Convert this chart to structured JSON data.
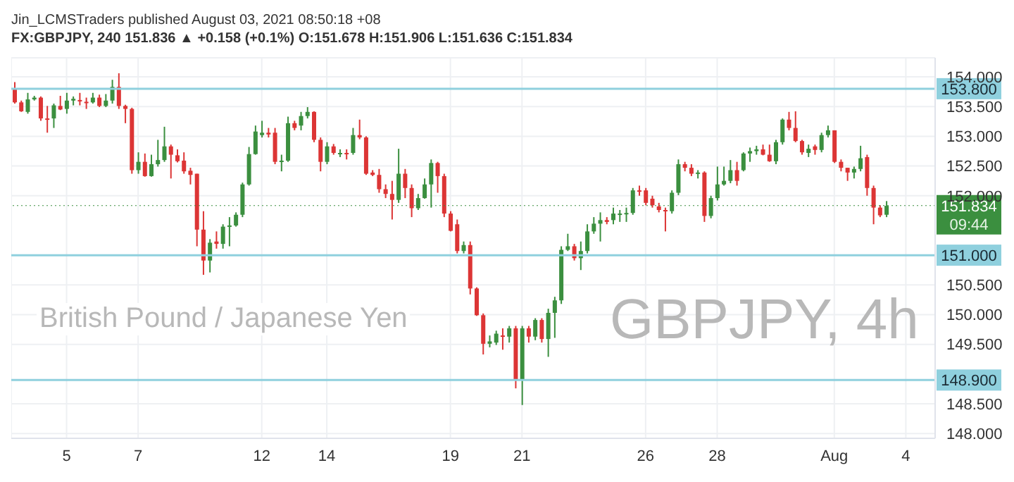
{
  "chart_data": {
    "type": "candlestick",
    "title": "Jin_LCMSTraders published August 03, 2021 08:50:18 +08",
    "subtitle": "FX:GBPJPY, 240 151.836 ▲ +0.158 (+0.1%) O:151.678 H:151.906 L:151.636 C:151.834",
    "annotations": [
      "GBPJPY, 4h",
      "British Pound / Japanese Yen",
      "09:44"
    ],
    "categories": [
      null,
      null,
      null,
      null,
      null,
      null,
      null,
      null,
      "5",
      null,
      null,
      null,
      null,
      null,
      null,
      null,
      null,
      null,
      null,
      "7",
      null,
      null,
      null,
      null,
      null,
      null,
      null,
      null,
      null,
      null,
      null,
      null,
      null,
      null,
      null,
      null,
      null,
      null,
      "12",
      null,
      null,
      null,
      null,
      null,
      null,
      null,
      null,
      null,
      "14",
      null,
      null,
      null,
      null,
      null,
      null,
      null,
      null,
      null,
      null,
      null,
      null,
      null,
      null,
      null,
      null,
      null,
      null,
      "19",
      null,
      null,
      null,
      null,
      null,
      null,
      null,
      null,
      null,
      null,
      "21",
      null,
      null,
      null,
      null,
      null,
      null,
      null,
      null,
      null,
      null,
      null,
      null,
      null,
      null,
      null,
      null,
      null,
      null,
      "26",
      null,
      null,
      null,
      null,
      null,
      null,
      null,
      null,
      null,
      null,
      "28",
      null,
      null,
      null,
      null,
      null,
      null,
      null,
      null,
      null,
      null,
      null,
      null,
      null,
      null,
      null,
      null,
      null,
      "Aug",
      null,
      null,
      null,
      null,
      null,
      null,
      null,
      null,
      null,
      null,
      "4",
      null,
      null,
      null,
      null
    ],
    "ohlc": [
      [
        153.81,
        153.91,
        153.55,
        153.57
      ],
      [
        153.57,
        153.6,
        153.41,
        153.42
      ],
      [
        153.41,
        153.73,
        153.38,
        153.62
      ],
      [
        153.62,
        153.68,
        153.6,
        153.65
      ],
      [
        153.65,
        153.67,
        153.26,
        153.3
      ],
      [
        153.3,
        153.51,
        153.06,
        153.29
      ],
      [
        153.3,
        153.55,
        153.14,
        153.52
      ],
      [
        153.51,
        153.68,
        153.44,
        153.45
      ],
      [
        153.46,
        153.73,
        153.38,
        153.6
      ],
      [
        153.6,
        153.67,
        153.52,
        153.63
      ],
      [
        153.61,
        153.73,
        153.52,
        153.59
      ],
      [
        153.58,
        153.65,
        153.46,
        153.57
      ],
      [
        153.57,
        153.73,
        153.55,
        153.65
      ],
      [
        153.65,
        153.7,
        153.49,
        153.51
      ],
      [
        153.51,
        153.71,
        153.49,
        153.6
      ],
      [
        153.6,
        153.95,
        153.55,
        153.83
      ],
      [
        153.83,
        154.06,
        153.46,
        153.51
      ],
      [
        153.51,
        153.53,
        153.22,
        153.46
      ],
      [
        153.46,
        153.48,
        152.37,
        152.43
      ],
      [
        152.43,
        152.73,
        152.37,
        152.57
      ],
      [
        152.57,
        152.71,
        152.32,
        152.33
      ],
      [
        152.33,
        152.69,
        152.32,
        152.53
      ],
      [
        152.53,
        152.94,
        152.49,
        152.6
      ],
      [
        152.6,
        153.16,
        152.57,
        152.83
      ],
      [
        152.83,
        152.86,
        152.29,
        152.69
      ],
      [
        152.68,
        152.78,
        152.56,
        152.58
      ],
      [
        152.59,
        152.73,
        152.37,
        152.41
      ],
      [
        152.42,
        152.47,
        152.19,
        152.35
      ],
      [
        152.37,
        152.37,
        151.15,
        151.43
      ],
      [
        151.43,
        151.74,
        150.67,
        150.91
      ],
      [
        150.91,
        151.27,
        150.71,
        151.21
      ],
      [
        151.23,
        151.4,
        151.11,
        151.19
      ],
      [
        151.19,
        151.52,
        151.11,
        151.48
      ],
      [
        151.49,
        151.64,
        151.15,
        151.5
      ],
      [
        151.5,
        151.72,
        151.48,
        151.68
      ],
      [
        151.68,
        152.22,
        151.64,
        152.19
      ],
      [
        152.19,
        152.82,
        152.17,
        152.7
      ],
      [
        152.7,
        153.18,
        152.69,
        153.08
      ],
      [
        153.02,
        153.26,
        152.98,
        153.06
      ],
      [
        153.06,
        153.14,
        152.98,
        153.03
      ],
      [
        153.06,
        153.14,
        152.53,
        152.57
      ],
      [
        152.57,
        152.69,
        152.41,
        152.59
      ],
      [
        152.59,
        153.33,
        152.57,
        153.22
      ],
      [
        153.22,
        153.26,
        153.1,
        153.14
      ],
      [
        153.18,
        153.41,
        153.1,
        153.34
      ],
      [
        153.34,
        153.49,
        153.3,
        153.41
      ],
      [
        153.41,
        153.42,
        152.9,
        152.94
      ],
      [
        152.94,
        152.98,
        152.41,
        152.57
      ],
      [
        152.57,
        152.9,
        152.53,
        152.83
      ],
      [
        152.83,
        152.87,
        152.69,
        152.72
      ],
      [
        152.7,
        152.78,
        152.65,
        152.72
      ],
      [
        152.72,
        152.78,
        152.61,
        152.7
      ],
      [
        152.72,
        153.14,
        152.69,
        153.02
      ],
      [
        153.02,
        153.28,
        152.95,
        152.98
      ],
      [
        152.98,
        153.0,
        152.35,
        152.37
      ],
      [
        152.39,
        152.43,
        152.33,
        152.35
      ],
      [
        152.35,
        152.45,
        152.05,
        152.11
      ],
      [
        152.11,
        152.19,
        151.96,
        152.03
      ],
      [
        152.03,
        152.25,
        151.6,
        151.93
      ],
      [
        151.93,
        152.79,
        151.88,
        152.37
      ],
      [
        152.37,
        152.45,
        151.96,
        152.13
      ],
      [
        152.13,
        152.19,
        151.64,
        151.79
      ],
      [
        151.79,
        152.03,
        151.76,
        151.96
      ],
      [
        151.96,
        152.29,
        151.95,
        152.19
      ],
      [
        152.19,
        152.61,
        151.8,
        152.55
      ],
      [
        152.55,
        152.57,
        152.05,
        152.33
      ],
      [
        152.33,
        152.37,
        151.64,
        151.7
      ],
      [
        151.7,
        151.74,
        151.4,
        151.41
      ],
      [
        151.52,
        151.6,
        151.03,
        151.07
      ],
      [
        151.07,
        151.23,
        151.03,
        151.17
      ],
      [
        151.17,
        151.23,
        150.34,
        150.44
      ],
      [
        150.44,
        150.46,
        149.98,
        149.99
      ],
      [
        149.99,
        150.02,
        149.33,
        149.51
      ],
      [
        149.51,
        149.65,
        149.45,
        149.55
      ],
      [
        149.53,
        149.73,
        149.49,
        149.68
      ],
      [
        149.65,
        149.77,
        149.41,
        149.63
      ],
      [
        149.63,
        149.81,
        149.53,
        149.77
      ],
      [
        149.77,
        149.81,
        148.76,
        148.9
      ],
      [
        148.9,
        149.81,
        148.48,
        149.77
      ],
      [
        149.77,
        149.81,
        149.53,
        149.63
      ],
      [
        149.63,
        149.94,
        149.57,
        149.91
      ],
      [
        149.91,
        149.94,
        149.53,
        149.59
      ],
      [
        149.59,
        150.1,
        149.29,
        150.03
      ],
      [
        150.03,
        150.3,
        149.61,
        150.24
      ],
      [
        150.24,
        151.15,
        150.18,
        151.09
      ],
      [
        151.09,
        151.36,
        151.07,
        151.15
      ],
      [
        151.15,
        151.19,
        150.91,
        150.95
      ],
      [
        150.95,
        151.23,
        150.75,
        151.07
      ],
      [
        151.07,
        151.52,
        151.03,
        151.4
      ],
      [
        151.4,
        151.64,
        151.36,
        151.53
      ],
      [
        151.53,
        151.72,
        151.23,
        151.59
      ],
      [
        151.59,
        151.64,
        151.52,
        151.56
      ],
      [
        151.59,
        151.8,
        151.52,
        151.7
      ],
      [
        151.69,
        151.76,
        151.56,
        151.7
      ],
      [
        151.7,
        151.8,
        151.56,
        151.71
      ],
      [
        151.71,
        152.13,
        151.68,
        152.09
      ],
      [
        152.09,
        152.17,
        152.0,
        152.07
      ],
      [
        152.09,
        152.13,
        151.84,
        151.88
      ],
      [
        151.95,
        152.0,
        151.8,
        151.84
      ],
      [
        151.82,
        151.88,
        151.72,
        151.76
      ],
      [
        151.76,
        151.8,
        151.4,
        151.74
      ],
      [
        151.74,
        152.09,
        151.7,
        152.05
      ],
      [
        152.05,
        152.61,
        152.01,
        152.53
      ],
      [
        152.53,
        152.57,
        152.41,
        152.47
      ],
      [
        152.47,
        152.53,
        152.33,
        152.37
      ],
      [
        152.37,
        152.43,
        152.29,
        152.39
      ],
      [
        152.39,
        152.41,
        151.56,
        151.66
      ],
      [
        151.66,
        152.0,
        151.62,
        151.96
      ],
      [
        151.96,
        152.49,
        151.92,
        152.19
      ],
      [
        152.19,
        152.49,
        152.17,
        152.25
      ],
      [
        152.25,
        152.6,
        152.21,
        152.43
      ],
      [
        152.43,
        152.57,
        152.17,
        152.25
      ],
      [
        152.43,
        152.73,
        152.41,
        152.71
      ],
      [
        152.71,
        152.81,
        152.57,
        152.75
      ],
      [
        152.75,
        152.84,
        152.69,
        152.78
      ],
      [
        152.78,
        152.86,
        152.68,
        152.69
      ],
      [
        152.69,
        152.86,
        152.57,
        152.58
      ],
      [
        152.58,
        152.94,
        152.53,
        152.9
      ],
      [
        152.9,
        153.3,
        152.86,
        153.28
      ],
      [
        153.28,
        153.41,
        153.1,
        153.14
      ],
      [
        153.14,
        153.42,
        152.9,
        152.92
      ],
      [
        152.92,
        152.94,
        152.69,
        152.73
      ],
      [
        152.72,
        152.86,
        152.65,
        152.79
      ],
      [
        152.83,
        152.86,
        152.69,
        152.77
      ],
      [
        152.77,
        153.06,
        152.73,
        153.02
      ],
      [
        153.02,
        153.18,
        152.98,
        153.1
      ],
      [
        153.1,
        153.1,
        152.55,
        152.57
      ],
      [
        152.57,
        152.61,
        152.41,
        152.47
      ],
      [
        152.47,
        152.47,
        152.25,
        152.39
      ],
      [
        152.39,
        152.49,
        152.29,
        152.45
      ],
      [
        152.45,
        152.84,
        152.41,
        152.63
      ],
      [
        152.65,
        152.69,
        152.0,
        152.13
      ],
      [
        152.13,
        152.17,
        151.52,
        151.8
      ],
      [
        151.8,
        151.84,
        151.64,
        151.67
      ],
      [
        151.68,
        151.91,
        151.64,
        151.83
      ],
      null,
      null,
      null,
      null,
      null,
      null,
      null
    ],
    "colors": [
      "#dc3535",
      "#dc3535",
      "#3b8f3f",
      "#3b8f3f",
      "#dc3535",
      "#dc3535",
      "#3b8f3f",
      "#dc3535",
      "#3b8f3f",
      "#3b8f3f",
      "#dc3535",
      "#dc3535",
      "#3b8f3f",
      "#dc3535",
      "#3b8f3f",
      "#3b8f3f",
      "#dc3535",
      "#dc3535",
      "#dc3535",
      "#3b8f3f",
      "#dc3535",
      "#3b8f3f",
      "#3b8f3f",
      "#3b8f3f",
      "#dc3535",
      "#dc3535",
      "#dc3535",
      "#dc3535",
      "#dc3535",
      "#dc3535",
      "#3b8f3f",
      "#dc3535",
      "#3b8f3f",
      "#3b8f3f",
      "#3b8f3f",
      "#3b8f3f",
      "#3b8f3f",
      "#3b8f3f",
      "#3b8f3f",
      "#dc3535",
      "#dc3535",
      "#3b8f3f",
      "#3b8f3f",
      "#dc3535",
      "#3b8f3f",
      "#3b8f3f",
      "#dc3535",
      "#dc3535",
      "#3b8f3f",
      "#dc3535",
      "#3b8f3f",
      "#dc3535",
      "#3b8f3f",
      "#dc3535",
      "#dc3535",
      "#dc3535",
      "#dc3535",
      "#dc3535",
      "#dc3535",
      "#3b8f3f",
      "#dc3535",
      "#dc3535",
      "#3b8f3f",
      "#3b8f3f",
      "#3b8f3f",
      "#dc3535",
      "#dc3535",
      "#dc3535",
      "#dc3535",
      "#3b8f3f",
      "#dc3535",
      "#dc3535",
      "#dc3535",
      "#3b8f3f",
      "#3b8f3f",
      "#dc3535",
      "#3b8f3f",
      "#dc3535",
      "#3b8f3f",
      "#dc3535",
      "#3b8f3f",
      "#dc3535",
      "#3b8f3f",
      "#3b8f3f",
      "#3b8f3f",
      "#3b8f3f",
      "#dc3535",
      "#3b8f3f",
      "#3b8f3f",
      "#3b8f3f",
      "#3b8f3f",
      "#dc3535",
      "#3b8f3f",
      "#3b8f3f",
      "#3b8f3f",
      "#3b8f3f",
      "#dc3535",
      "#dc3535",
      "#dc3535",
      "#dc3535",
      "#dc3535",
      "#3b8f3f",
      "#3b8f3f",
      "#dc3535",
      "#dc3535",
      "#3b8f3f",
      "#dc3535",
      "#3b8f3f",
      "#3b8f3f",
      "#3b8f3f",
      "#3b8f3f",
      "#dc3535",
      "#3b8f3f",
      "#3b8f3f",
      "#3b8f3f",
      "#dc3535",
      "#dc3535",
      "#3b8f3f",
      "#3b8f3f",
      "#dc3535",
      "#dc3535",
      "#dc3535",
      "#3b8f3f",
      "#dc3535",
      "#3b8f3f",
      "#3b8f3f",
      "#dc3535",
      "#dc3535",
      "#dc3535",
      "#3b8f3f",
      "#3b8f3f",
      "#dc3535",
      "#dc3535",
      "#dc3535",
      "#3b8f3f",
      null,
      null,
      null,
      null,
      null,
      null,
      null
    ],
    "ylim": [
      147.92,
      154.32
    ],
    "yticks": [
      {
        "value": 148,
        "label": "148.000"
      },
      {
        "value": 148.5,
        "label": "148.500"
      },
      {
        "value": 149.5,
        "label": "149.500"
      },
      {
        "value": 150,
        "label": "150.000"
      },
      {
        "value": 150.5,
        "label": "150.500"
      },
      {
        "value": 152,
        "label": "152.000"
      },
      {
        "value": 152.5,
        "label": "152.500"
      },
      {
        "value": 153,
        "label": "153.000"
      },
      {
        "value": 153.5,
        "label": "153.500"
      },
      {
        "value": 154,
        "label": "154.000"
      }
    ],
    "ref_lines": [
      {
        "axis": "y",
        "value": 153.8,
        "label": "153.800",
        "color": "#8fd0de"
      },
      {
        "axis": "y",
        "value": 151,
        "label": "151.000",
        "color": "#8fd0de"
      },
      {
        "axis": "y",
        "value": 148.9,
        "label": "148.900",
        "color": "#8fd0de"
      },
      {
        "axis": "y",
        "value": 151.834,
        "label": "151.834",
        "color": "#3b8f3f",
        "line_style": "dotted"
      }
    ],
    "grid": true
  }
}
